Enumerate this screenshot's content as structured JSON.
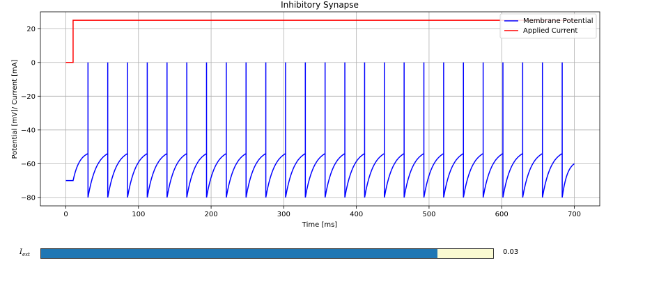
{
  "chart_data": {
    "type": "line",
    "title": "Inhibitory Synapse",
    "xlabel": "Time [ms]",
    "ylabel": "Potential [mV]/ Current [mA]",
    "xlim": [
      -35,
      735
    ],
    "ylim": [
      -85,
      30
    ],
    "xticks": [
      0,
      100,
      200,
      300,
      400,
      500,
      600,
      700
    ],
    "yticks": [
      -80,
      -60,
      -40,
      -20,
      0,
      20
    ],
    "grid": true,
    "legend_position": "top-right",
    "series": [
      {
        "name": "Membrane Potential",
        "color": "#0000ff",
        "model": {
          "rest": -70,
          "onset": 10,
          "first_spike": 30.5,
          "period": 27.2,
          "reset": -80,
          "threshold": -54,
          "peak": 0,
          "end": 700,
          "end_value": -60
        }
      },
      {
        "name": "Applied Current",
        "color": "#ff0000",
        "x": [
          0,
          10,
          10,
          700
        ],
        "y": [
          0,
          0,
          25,
          25
        ]
      }
    ]
  },
  "slider": {
    "label_main": "I",
    "label_sub": "ext",
    "fraction": 0.877,
    "value_text": "0.03",
    "fill_color": "#1f77b4",
    "rest_color": "#fafad2"
  }
}
